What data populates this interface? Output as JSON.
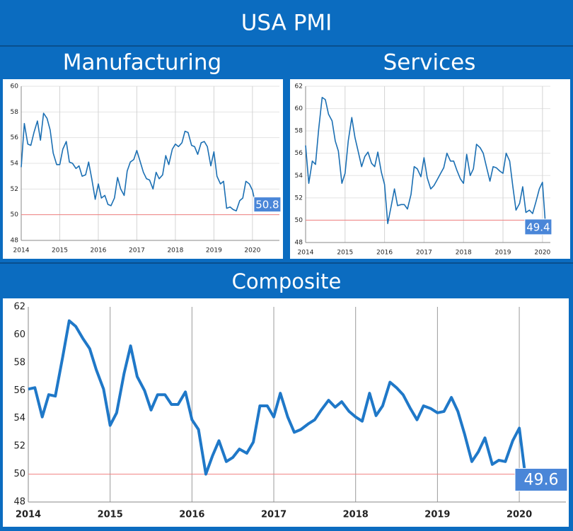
{
  "title": "USA PMI",
  "chart_data": [
    {
      "type": "line",
      "title": "Manufacturing",
      "color": "#1b6fb3",
      "grid": [
        "x",
        "y"
      ],
      "xlim": [
        2014,
        2020.7
      ],
      "xticks": [
        2014,
        2015,
        2016,
        2017,
        2018,
        2019,
        2020
      ],
      "ylim": [
        48,
        60
      ],
      "yticks": [
        48,
        50,
        52,
        54,
        56,
        58,
        60
      ],
      "reference_line": 50,
      "reference_color": "#f08080",
      "x": [
        2014,
        2014.08,
        2014.17,
        2014.25,
        2014.33,
        2014.42,
        2014.5,
        2014.58,
        2014.67,
        2014.75,
        2014.83,
        2014.92,
        2015,
        2015.08,
        2015.17,
        2015.25,
        2015.33,
        2015.42,
        2015.5,
        2015.58,
        2015.67,
        2015.75,
        2015.83,
        2015.92,
        2016,
        2016.08,
        2016.17,
        2016.25,
        2016.33,
        2016.42,
        2016.5,
        2016.58,
        2016.67,
        2016.75,
        2016.83,
        2016.92,
        2017,
        2017.08,
        2017.17,
        2017.25,
        2017.33,
        2017.42,
        2017.5,
        2017.58,
        2017.67,
        2017.75,
        2017.83,
        2017.92,
        2018,
        2018.08,
        2018.17,
        2018.25,
        2018.33,
        2018.42,
        2018.5,
        2018.58,
        2018.67,
        2018.75,
        2018.83,
        2018.92,
        2019,
        2019.08,
        2019.17,
        2019.25,
        2019.33,
        2019.42,
        2019.5,
        2019.58,
        2019.67,
        2019.75,
        2019.83,
        2019.92,
        2020,
        2020.08
      ],
      "values": [
        53.7,
        57.1,
        55.5,
        55.4,
        56.4,
        57.3,
        55.8,
        57.9,
        57.5,
        56.6,
        54.8,
        53.9,
        53.9,
        55.1,
        55.7,
        54.1,
        54.0,
        53.6,
        53.8,
        53.0,
        53.1,
        54.1,
        52.8,
        51.2,
        52.4,
        51.3,
        51.5,
        50.8,
        50.7,
        51.3,
        52.9,
        52.0,
        51.5,
        53.4,
        54.1,
        54.3,
        55.0,
        54.2,
        53.3,
        52.8,
        52.7,
        52.0,
        53.3,
        52.8,
        53.1,
        54.6,
        53.9,
        55.1,
        55.5,
        55.3,
        55.6,
        56.5,
        56.4,
        55.4,
        55.3,
        54.7,
        55.6,
        55.7,
        55.3,
        53.8,
        54.9,
        53.0,
        52.4,
        52.6,
        50.5,
        50.6,
        50.4,
        50.3,
        51.1,
        51.3,
        52.6,
        52.4,
        51.9,
        50.8
      ],
      "last_value_label": "50.8"
    },
    {
      "type": "line",
      "title": "Services",
      "color": "#1b6fb3",
      "grid": [
        "x",
        "y"
      ],
      "xlim": [
        2014,
        2020.2
      ],
      "xticks": [
        2014,
        2015,
        2016,
        2017,
        2018,
        2019,
        2020
      ],
      "ylim": [
        48,
        62
      ],
      "yticks": [
        48,
        50,
        52,
        54,
        56,
        58,
        60,
        62
      ],
      "reference_line": 50,
      "reference_color": "#f08080",
      "x": [
        2014,
        2014.08,
        2014.17,
        2014.25,
        2014.33,
        2014.42,
        2014.5,
        2014.58,
        2014.67,
        2014.75,
        2014.83,
        2014.92,
        2015,
        2015.08,
        2015.17,
        2015.25,
        2015.33,
        2015.42,
        2015.5,
        2015.58,
        2015.67,
        2015.75,
        2015.83,
        2015.92,
        2016,
        2016.08,
        2016.17,
        2016.25,
        2016.33,
        2016.42,
        2016.5,
        2016.58,
        2016.67,
        2016.75,
        2016.83,
        2016.92,
        2017,
        2017.08,
        2017.17,
        2017.25,
        2017.33,
        2017.42,
        2017.5,
        2017.58,
        2017.67,
        2017.75,
        2017.83,
        2017.92,
        2018,
        2018.08,
        2018.17,
        2018.25,
        2018.33,
        2018.42,
        2018.5,
        2018.58,
        2018.67,
        2018.75,
        2018.83,
        2018.92,
        2019,
        2019.08,
        2019.17,
        2019.25,
        2019.33,
        2019.42,
        2019.5,
        2019.58,
        2019.67,
        2019.75,
        2019.83,
        2019.92,
        2020,
        2020.08
      ],
      "values": [
        56.7,
        53.3,
        55.3,
        55.0,
        58.1,
        61.0,
        60.8,
        59.5,
        58.9,
        57.1,
        56.2,
        53.3,
        54.2,
        57.1,
        59.2,
        57.4,
        56.2,
        54.8,
        55.7,
        56.1,
        55.1,
        54.8,
        56.1,
        54.3,
        53.2,
        49.7,
        51.3,
        52.8,
        51.3,
        51.4,
        51.4,
        51.0,
        52.3,
        54.8,
        54.6,
        53.9,
        55.6,
        53.8,
        52.8,
        53.1,
        53.6,
        54.2,
        54.7,
        56.0,
        55.3,
        55.3,
        54.5,
        53.7,
        53.3,
        55.9,
        54.0,
        54.6,
        56.8,
        56.5,
        56.0,
        54.8,
        53.5,
        54.8,
        54.7,
        54.4,
        54.2,
        56.0,
        55.3,
        53.0,
        50.9,
        51.5,
        53.0,
        50.7,
        50.9,
        50.6,
        51.6,
        52.8,
        53.4,
        49.4
      ],
      "last_value_label": "49.4"
    },
    {
      "type": "line",
      "title": "Composite",
      "color": "#1f78c8",
      "grid": [
        "x"
      ],
      "xlim": [
        2014,
        2020.57
      ],
      "xticks": [
        2014,
        2015,
        2016,
        2017,
        2018,
        2019,
        2020
      ],
      "ylim": [
        48,
        62
      ],
      "yticks": [
        48,
        50,
        52,
        54,
        56,
        58,
        60,
        62
      ],
      "reference_line": 50,
      "reference_color": "#f08080",
      "x": [
        2014,
        2014.08,
        2014.17,
        2014.25,
        2014.33,
        2014.42,
        2014.5,
        2014.58,
        2014.67,
        2014.75,
        2014.83,
        2014.92,
        2015,
        2015.08,
        2015.17,
        2015.25,
        2015.33,
        2015.42,
        2015.5,
        2015.58,
        2015.67,
        2015.75,
        2015.83,
        2015.92,
        2016,
        2016.08,
        2016.17,
        2016.25,
        2016.33,
        2016.42,
        2016.5,
        2016.58,
        2016.67,
        2016.75,
        2016.83,
        2016.92,
        2017,
        2017.08,
        2017.17,
        2017.25,
        2017.33,
        2017.42,
        2017.5,
        2017.58,
        2017.67,
        2017.75,
        2017.83,
        2017.92,
        2018,
        2018.08,
        2018.17,
        2018.25,
        2018.33,
        2018.42,
        2018.5,
        2018.58,
        2018.67,
        2018.75,
        2018.83,
        2018.92,
        2019,
        2019.08,
        2019.17,
        2019.25,
        2019.33,
        2019.42,
        2019.5,
        2019.58,
        2019.67,
        2019.75,
        2019.83,
        2019.92,
        2020,
        2020.08
      ],
      "values": [
        56.1,
        56.2,
        54.1,
        55.7,
        55.6,
        58.4,
        61.0,
        60.6,
        59.7,
        59.0,
        57.5,
        56.1,
        53.5,
        54.4,
        57.2,
        59.2,
        57.0,
        56.0,
        54.6,
        55.7,
        55.7,
        55.0,
        55.0,
        55.9,
        53.9,
        53.2,
        50.0,
        51.3,
        52.4,
        50.9,
        51.2,
        51.8,
        51.5,
        52.3,
        54.9,
        54.9,
        54.1,
        55.8,
        54.1,
        53.0,
        53.2,
        53.6,
        53.9,
        54.6,
        55.3,
        54.8,
        55.2,
        54.5,
        54.1,
        53.8,
        55.8,
        54.2,
        54.9,
        56.6,
        56.2,
        55.7,
        54.7,
        53.9,
        54.9,
        54.7,
        54.4,
        54.5,
        55.5,
        54.5,
        52.9,
        50.9,
        51.6,
        52.6,
        50.7,
        51.0,
        50.9,
        52.4,
        53.3,
        49.6
      ],
      "last_value_label": "49.6"
    }
  ]
}
